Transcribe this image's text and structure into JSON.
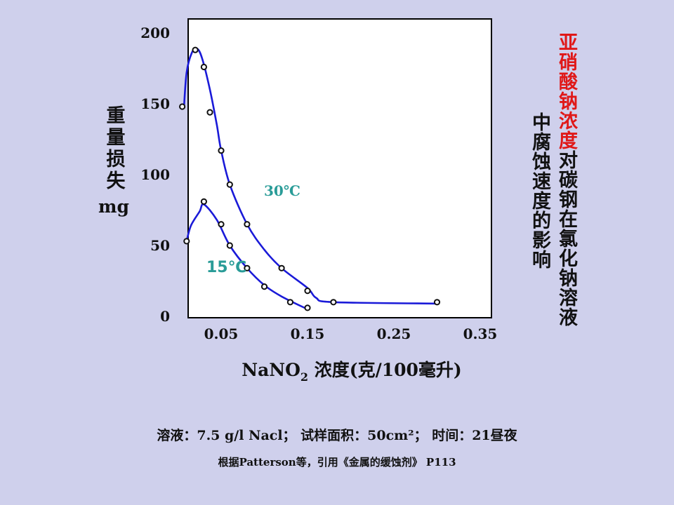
{
  "title": {
    "col1_highlight": "亚硝酸钠浓度",
    "col1_rest": "对碳钢在氯化钠溶液",
    "col2": "中腐蚀速度的影响"
  },
  "ylabel": {
    "chars": "重量损失",
    "unit": "mg"
  },
  "footnote": {
    "conditions": "溶液：7.5 g/l Nacl； 试样面积：50cm²； 时间：21昼夜",
    "source": "根据Patterson等，引用《金属的缓蚀剂》 P113"
  },
  "colors": {
    "curve": "#1a1ad8",
    "annotation": "#2a9c98",
    "highlight": "#e01818"
  },
  "chart_data": {
    "type": "line",
    "xlabel": {
      "prefix": "NaNO",
      "sub": "2",
      "suffix": " 浓度(克/100毫升)"
    },
    "ylabel": "重量损失 mg",
    "xlim": [
      0.0,
      0.35
    ],
    "ylim": [
      0,
      200
    ],
    "xticks": [
      0.05,
      0.15,
      0.25,
      0.35
    ],
    "xtick_labels": [
      "0.05",
      "0.15",
      "0.25",
      "0.35"
    ],
    "yticks": [
      0,
      50,
      100,
      150,
      200
    ],
    "ytick_labels": [
      "0",
      "50",
      "100",
      "150",
      "200"
    ],
    "grid": false,
    "series": [
      {
        "name": "30℃",
        "points": [
          [
            0.005,
            148
          ],
          [
            0.02,
            188
          ],
          [
            0.03,
            176
          ],
          [
            0.037,
            144
          ],
          [
            0.05,
            117
          ],
          [
            0.06,
            93
          ],
          [
            0.08,
            65
          ],
          [
            0.12,
            34
          ],
          [
            0.15,
            18
          ],
          [
            0.18,
            10
          ],
          [
            0.3,
            10
          ]
        ],
        "curve": [
          [
            0.007,
            148
          ],
          [
            0.01,
            172
          ],
          [
            0.016,
            186
          ],
          [
            0.022,
            189
          ],
          [
            0.028,
            182
          ],
          [
            0.037,
            160
          ],
          [
            0.045,
            135
          ],
          [
            0.05,
            117
          ],
          [
            0.06,
            93
          ],
          [
            0.08,
            65
          ],
          [
            0.1,
            47
          ],
          [
            0.12,
            34
          ],
          [
            0.15,
            20
          ],
          [
            0.16,
            13
          ],
          [
            0.18,
            10
          ],
          [
            0.3,
            9
          ]
        ]
      },
      {
        "name": "15℃",
        "points": [
          [
            0.01,
            53
          ],
          [
            0.03,
            81
          ],
          [
            0.05,
            65
          ],
          [
            0.06,
            50
          ],
          [
            0.08,
            34
          ],
          [
            0.1,
            21
          ],
          [
            0.13,
            10
          ],
          [
            0.15,
            6
          ]
        ],
        "curve": [
          [
            0.01,
            53
          ],
          [
            0.015,
            64
          ],
          [
            0.025,
            74
          ],
          [
            0.03,
            79
          ],
          [
            0.045,
            68
          ],
          [
            0.06,
            50
          ],
          [
            0.08,
            34
          ],
          [
            0.1,
            22
          ],
          [
            0.12,
            14
          ],
          [
            0.15,
            5
          ]
        ]
      }
    ]
  }
}
